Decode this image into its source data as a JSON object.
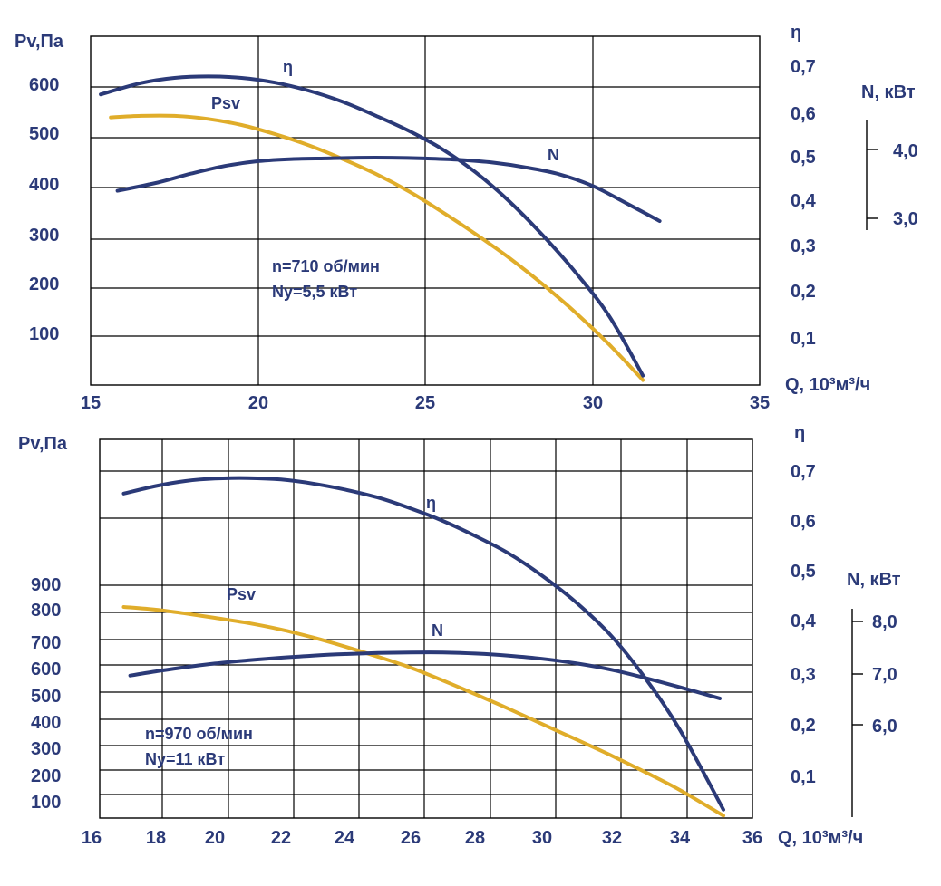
{
  "colors": {
    "psv": "#e0ad2a",
    "eta": "#2b3a78",
    "n": "#2b3a78",
    "text": "#2b3a78",
    "grid": "#000000"
  },
  "chart_data": [
    {
      "type": "line",
      "xlabel": "Q, 10³м³/ч",
      "ylabel": "Pv,Па",
      "eta_label": "η",
      "power_label": "N, кВт",
      "annotation": [
        "n=710 об/мин",
        "Ny=5,5 кВт"
      ],
      "xlim": [
        15,
        35
      ],
      "x_ticks": [
        "15",
        "20",
        "25",
        "30",
        "35"
      ],
      "y_ticks": [
        "100",
        "200",
        "300",
        "400",
        "500",
        "600"
      ],
      "eta_ticks": [
        "0,1",
        "0,2",
        "0,3",
        "0,4",
        "0,5",
        "0,6",
        "0,7"
      ],
      "power_ticks": [
        "3,0",
        "4,0"
      ],
      "grid": true,
      "series": [
        {
          "name": "Psv",
          "axis": "Pa",
          "x": [
            15.6,
            16.5,
            17.5,
            18.5,
            19.5,
            20.5,
            21.5,
            22.5,
            23.5,
            24.5,
            25.5,
            26.5,
            27.5,
            28.5,
            29.5,
            30.5,
            31.5
          ],
          "y": [
            540,
            543,
            543,
            537,
            525,
            507,
            485,
            458,
            428,
            393,
            353,
            310,
            262,
            208,
            148,
            82,
            10
          ]
        },
        {
          "name": "η",
          "axis": "eta",
          "x": [
            15.3,
            16.5,
            17.5,
            18.5,
            19.5,
            20.5,
            21.5,
            22.5,
            23.5,
            24.5,
            25.5,
            26.5,
            27.5,
            28.5,
            29.5,
            30.5,
            31.5
          ],
          "y": [
            0.64,
            0.664,
            0.675,
            0.678,
            0.675,
            0.665,
            0.648,
            0.625,
            0.595,
            0.56,
            0.518,
            0.465,
            0.4,
            0.325,
            0.24,
            0.145,
            0.02
          ]
        },
        {
          "name": "N",
          "axis": "kW",
          "x": [
            15.8,
            17,
            18,
            19,
            20,
            21,
            22,
            23,
            24,
            25,
            26,
            27,
            28,
            29,
            30,
            31,
            32
          ],
          "y": [
            3.4,
            3.52,
            3.65,
            3.76,
            3.83,
            3.86,
            3.87,
            3.88,
            3.88,
            3.87,
            3.85,
            3.81,
            3.74,
            3.64,
            3.47,
            3.22,
            2.96
          ]
        }
      ]
    },
    {
      "type": "line",
      "xlabel": "Q, 10³м³/ч",
      "ylabel": "Pv,Па",
      "eta_label": "η",
      "power_label": "N, кВт",
      "annotation": [
        "n=970 об/мин",
        "Ny=11 кВт"
      ],
      "xlim": [
        16,
        36
      ],
      "x_ticks": [
        "16",
        "18",
        "20",
        "22",
        "24",
        "26",
        "28",
        "30",
        "32",
        "34",
        "36"
      ],
      "y_ticks": [
        "100",
        "200",
        "300",
        "400",
        "500",
        "600",
        "700",
        "800",
        "900"
      ],
      "eta_ticks": [
        "0,1",
        "0,2",
        "0,3",
        "0,4",
        "0,5",
        "0,6",
        "0,7"
      ],
      "power_ticks": [
        "6,0",
        "7,0",
        "8,0"
      ],
      "grid": true,
      "series": [
        {
          "name": "Psv",
          "axis": "Pa",
          "x": [
            17,
            18,
            19,
            20,
            21,
            22,
            23,
            24,
            25,
            26,
            27,
            28,
            29,
            30,
            31,
            32,
            33,
            34,
            35.2
          ],
          "y": [
            820,
            810,
            796,
            780,
            761,
            737,
            708,
            673,
            633,
            590,
            543,
            493,
            439,
            382,
            322,
            258,
            190,
            118,
            10
          ]
        },
        {
          "name": "η",
          "axis": "eta",
          "x": [
            17,
            18,
            19,
            20,
            21,
            22,
            23,
            24,
            25,
            26,
            27,
            28,
            29,
            30,
            31,
            32,
            33,
            34,
            35.2
          ],
          "y": [
            0.655,
            0.67,
            0.68,
            0.685,
            0.686,
            0.683,
            0.675,
            0.663,
            0.647,
            0.625,
            0.6,
            0.57,
            0.535,
            0.49,
            0.435,
            0.37,
            0.29,
            0.19,
            0.02
          ]
        },
        {
          "name": "N",
          "axis": "kW",
          "x": [
            17.2,
            18,
            19,
            20,
            21,
            22,
            23,
            24,
            25,
            26,
            27,
            28,
            29,
            30,
            31,
            32,
            33,
            34,
            35.1
          ],
          "y": [
            6.97,
            7.05,
            7.13,
            7.2,
            7.26,
            7.31,
            7.35,
            7.38,
            7.4,
            7.41,
            7.41,
            7.39,
            7.35,
            7.29,
            7.2,
            7.08,
            6.92,
            6.74,
            6.52
          ]
        }
      ]
    }
  ]
}
